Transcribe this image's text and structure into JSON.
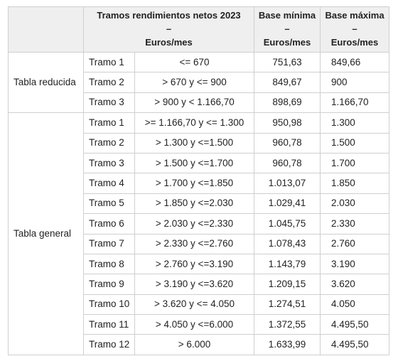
{
  "header": {
    "col1_line1": "Tramos rendimientos netos 2023",
    "col1_line2": "–",
    "col1_line3": "Euros/mes",
    "col2_line1": "Base mínima",
    "col2_line2": "–",
    "col2_line3": "Euros/mes",
    "col3_line1": "Base máxima",
    "col3_line2": "–",
    "col3_line3": "Euros/mes"
  },
  "groups": [
    {
      "label": "Tabla reducida",
      "rows": [
        {
          "tramo": "Tramo 1",
          "range": "<= 670",
          "min": "751,63",
          "max": "849,66"
        },
        {
          "tramo": "Tramo 2",
          "range": "> 670 y <= 900",
          "min": "849,67",
          "max": "900"
        },
        {
          "tramo": "Tramo 3",
          "range": "> 900 y < 1.166,70",
          "min": "898,69",
          "max": "1.166,70"
        }
      ]
    },
    {
      "label": "Tabla general",
      "rows": [
        {
          "tramo": "Tramo 1",
          "range": ">= 1.166,70 y <= 1.300",
          "min": "950,98",
          "max": "1.300"
        },
        {
          "tramo": "Tramo 2",
          "range": "> 1.300 y <=1.500",
          "min": "960,78",
          "max": "1.500"
        },
        {
          "tramo": "Tramo 3",
          "range": "> 1.500 y <=1.700",
          "min": "960,78",
          "max": "1.700"
        },
        {
          "tramo": "Tramo 4",
          "range": "> 1.700 y <=1.850",
          "min": "1.013,07",
          "max": "1.850"
        },
        {
          "tramo": "Tramo 5",
          "range": "> 1.850 y <=2.030",
          "min": "1.029,41",
          "max": "2.030"
        },
        {
          "tramo": "Tramo 6",
          "range": "> 2.030 y <=2.330",
          "min": "1.045,75",
          "max": "2.330"
        },
        {
          "tramo": "Tramo 7",
          "range": "> 2.330 y <=2.760",
          "min": "1.078,43",
          "max": "2.760"
        },
        {
          "tramo": "Tramo 8",
          "range": "> 2.760 y <=3.190",
          "min": "1.143,79",
          "max": "3.190"
        },
        {
          "tramo": "Tramo 9",
          "range": "> 3.190 y <=3.620",
          "min": "1.209,15",
          "max": "3.620"
        },
        {
          "tramo": "Tramo 10",
          "range": "> 3.620 y <= 4.050",
          "min": "1.274,51",
          "max": "4.050"
        },
        {
          "tramo": "Tramo 11",
          "range": "> 4.050 y <=6.000",
          "min": "1.372,55",
          "max": "4.495,50"
        },
        {
          "tramo": "Tramo 12",
          "range": "> 6.000",
          "min": "1.633,99",
          "max": "4.495,50"
        }
      ]
    }
  ]
}
